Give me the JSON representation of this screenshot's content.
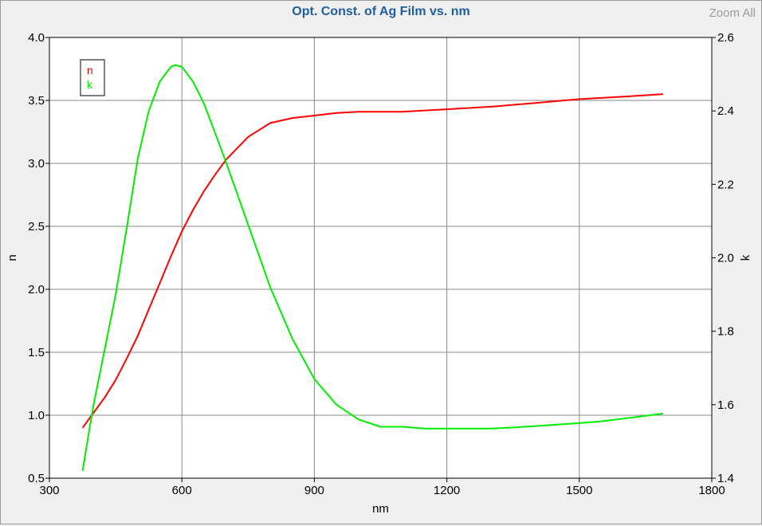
{
  "title": "Opt. Const. of Ag Film vs. nm",
  "zoom_label": "Zoom All",
  "chart_data": {
    "type": "line",
    "title": "Opt. Const. of Ag Film vs. nm",
    "xlabel": "nm",
    "ylabel": "n",
    "y2label": "k",
    "xlim": [
      300,
      1800
    ],
    "ylim": [
      0.5,
      4.0
    ],
    "y2lim": [
      1.4,
      2.6
    ],
    "xticks": [
      300,
      600,
      900,
      1200,
      1500,
      1800
    ],
    "yticks": [
      "0.5",
      "1.0",
      "1.5",
      "2.0",
      "2.5",
      "3.0",
      "3.5",
      "4.0"
    ],
    "y2ticks": [
      "1.4",
      "1.6",
      "1.8",
      "2.0",
      "2.2",
      "2.4",
      "2.6"
    ],
    "grid": true,
    "legend": "top-left",
    "series": [
      {
        "name": "n",
        "axis": "left",
        "color": "#ff0000",
        "x": [
          375,
          400,
          425,
          450,
          475,
          500,
          525,
          550,
          575,
          600,
          625,
          650,
          675,
          700,
          750,
          800,
          850,
          900,
          950,
          1000,
          1100,
          1200,
          1300,
          1400,
          1500,
          1600,
          1690
        ],
        "y": [
          0.9,
          1.02,
          1.14,
          1.28,
          1.45,
          1.63,
          1.84,
          2.05,
          2.26,
          2.46,
          2.63,
          2.78,
          2.91,
          3.03,
          3.21,
          3.32,
          3.36,
          3.38,
          3.4,
          3.41,
          3.41,
          3.43,
          3.45,
          3.48,
          3.51,
          3.53,
          3.55
        ]
      },
      {
        "name": "k",
        "axis": "right",
        "color": "#00ee00",
        "x": [
          375,
          390,
          400,
          425,
          450,
          475,
          500,
          525,
          550,
          575,
          585,
          600,
          625,
          650,
          675,
          700,
          750,
          800,
          850,
          900,
          950,
          1000,
          1050,
          1100,
          1150,
          1200,
          1250,
          1300,
          1350,
          1400,
          1450,
          1500,
          1550,
          1600,
          1650,
          1690
        ],
        "y": [
          1.42,
          1.53,
          1.6,
          1.75,
          1.9,
          2.08,
          2.27,
          2.4,
          2.48,
          2.52,
          2.525,
          2.52,
          2.48,
          2.42,
          2.34,
          2.26,
          2.09,
          1.92,
          1.78,
          1.67,
          1.6,
          1.56,
          1.54,
          1.54,
          1.535,
          1.535,
          1.535,
          1.535,
          1.538,
          1.542,
          1.546,
          1.55,
          1.555,
          1.562,
          1.57,
          1.576
        ]
      }
    ]
  }
}
